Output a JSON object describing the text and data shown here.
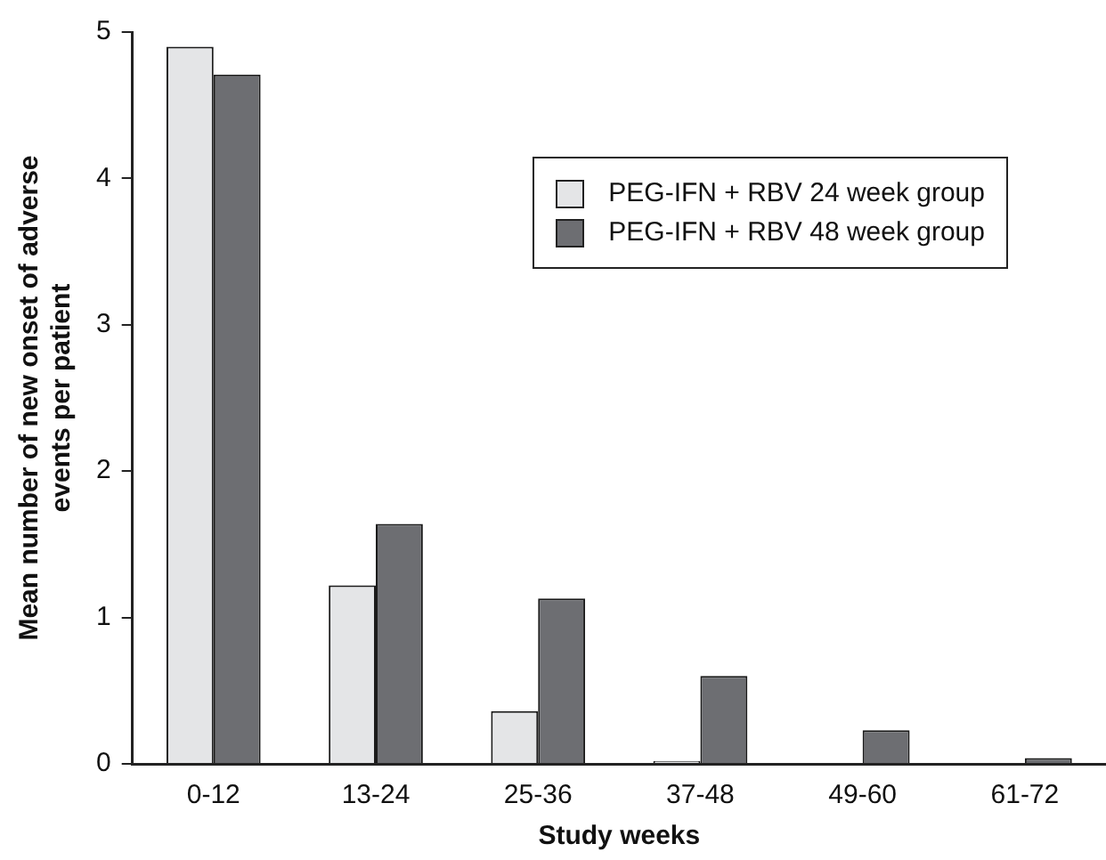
{
  "chart_data": {
    "type": "bar",
    "xlabel": "Study weeks",
    "ylabel": "Mean number of new onset of adverse events per patient",
    "categories": [
      "0-12",
      "13-24",
      "25-36",
      "37-48",
      "49-60",
      "61-72"
    ],
    "series": [
      {
        "name": "PEG-IFN + RBV 24 week group",
        "color": "#e4e5e7",
        "values": [
          4.9,
          1.22,
          0.36,
          0.02,
          0,
          0
        ]
      },
      {
        "name": "PEG-IFN + RBV 48 week group",
        "color": "#6d6e72",
        "values": [
          4.71,
          1.64,
          1.13,
          0.6,
          0.23,
          0.04
        ]
      }
    ],
    "ylim": [
      0,
      5
    ],
    "yticks": [
      0,
      1,
      2,
      3,
      4,
      5
    ],
    "grid": false,
    "legend": "top right"
  }
}
